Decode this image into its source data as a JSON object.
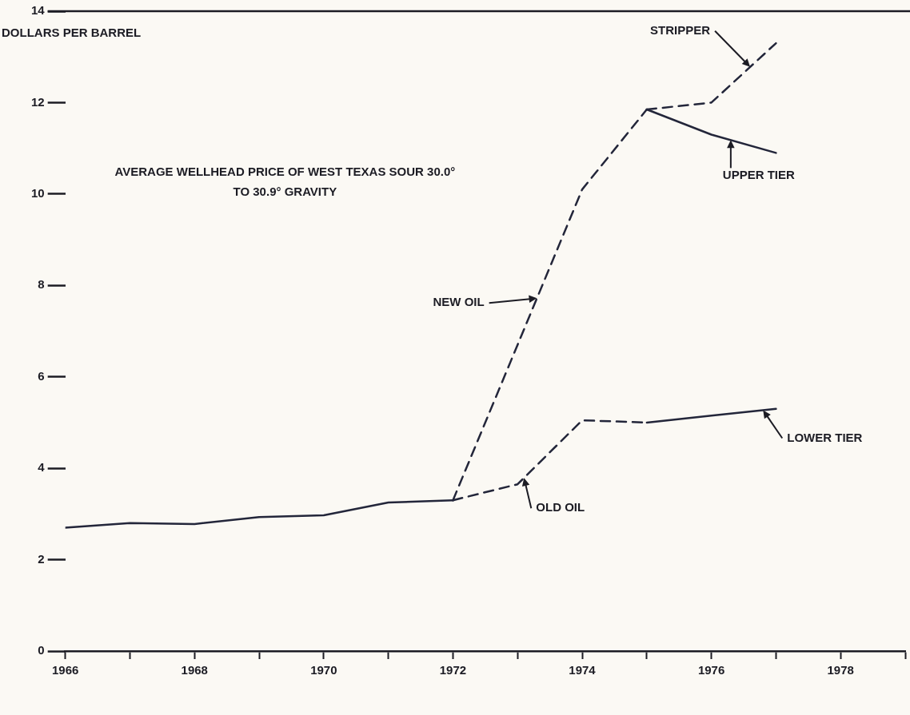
{
  "chart_data": {
    "type": "line",
    "title": "AVERAGE WELLHEAD PRICE OF WEST TEXAS SOUR 30.0° TO 30.9° GRAVITY",
    "ylabel": "DOLLARS PER BARREL",
    "series": [
      {
        "color": "#23263a",
        "line_style": "solid",
        "x": [
          1966,
          1967,
          1968,
          1969,
          1970,
          1971,
          1972
        ],
        "values": [
          2.7,
          2.8,
          2.78,
          2.93,
          2.97,
          3.25,
          3.3
        ]
      },
      {
        "color": "#23263a",
        "line_style": "dashed",
        "x": [
          1972,
          1974,
          1975
        ],
        "values": [
          3.3,
          10.1,
          11.85
        ]
      },
      {
        "color": "#23263a",
        "line_style": "dashed",
        "x": [
          1975,
          1976,
          1977
        ],
        "values": [
          11.85,
          12.0,
          13.3
        ]
      },
      {
        "color": "#23263a",
        "line_style": "solid",
        "x": [
          1975,
          1976,
          1977
        ],
        "values": [
          11.85,
          11.3,
          10.9
        ]
      },
      {
        "color": "#23263a",
        "line_style": "dashed",
        "x": [
          1972,
          1973,
          1974,
          1975
        ],
        "values": [
          3.3,
          3.65,
          5.05,
          5.0
        ]
      },
      {
        "color": "#23263a",
        "line_style": "solid",
        "x": [
          1975,
          1976,
          1977
        ],
        "values": [
          5.0,
          5.15,
          5.3
        ]
      }
    ],
    "annotations": [
      {
        "text": "STRIPPER",
        "x": 1976.6,
        "y": 12.78
      },
      {
        "text": "UPPER TIER",
        "x": 1976.3,
        "y": 11.18
      },
      {
        "text": "NEW OIL",
        "x": 1973.3,
        "y": 7.72
      },
      {
        "text": "OLD OIL",
        "x": 1973.1,
        "y": 3.79
      },
      {
        "text": "LOWER TIER",
        "x": 1976.8,
        "y": 5.27
      }
    ],
    "xlim": [
      1966,
      1979
    ],
    "xticks": [
      1966,
      {
        "value": 1967,
        "label": null
      },
      1968,
      {
        "value": 1969,
        "label": null
      },
      1970,
      {
        "value": 1971,
        "label": null
      },
      1972,
      {
        "value": 1973,
        "label": null
      },
      1974,
      {
        "value": 1975,
        "label": null
      },
      1976,
      {
        "value": 1977,
        "label": null
      },
      1978,
      {
        "value": 1979,
        "label": null
      }
    ],
    "ylim": [
      0,
      14
    ],
    "yticks": [
      0,
      2,
      4,
      6,
      8,
      10,
      12,
      14
    ],
    "grid": false,
    "legend": false,
    "marker": "none"
  }
}
